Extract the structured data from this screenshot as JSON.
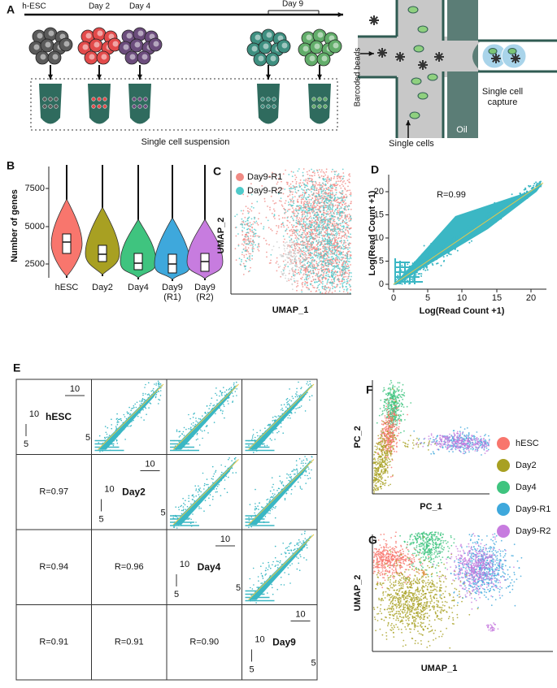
{
  "panel_a": {
    "letter": "A",
    "stages": [
      "h-ESC",
      "Day 2",
      "Day 4",
      "Day 9"
    ],
    "suspension": "Single cell suspension",
    "beads": "Barcoded beads",
    "capture": [
      "Single cell",
      "capture"
    ],
    "oil": "Oil",
    "cells": "Single cells"
  },
  "panel_b": {
    "letter": "B",
    "y_label": "Number of genes",
    "yticks": [
      "2500",
      "5000",
      "7500"
    ],
    "categories": [
      [
        "hESC"
      ],
      [
        "Day2"
      ],
      [
        "Day4"
      ],
      [
        "Day9",
        "(R1)"
      ],
      [
        "Day9",
        "(R2)"
      ]
    ]
  },
  "panel_c": {
    "letter": "C",
    "legend": [
      "Day9-R1",
      "Day9-R2"
    ],
    "colors": [
      "#f08a84",
      "#4fcaca"
    ],
    "x_label": "UMAP_1",
    "y_label": "UMAP_2"
  },
  "panel_d": {
    "letter": "D",
    "annotation": "R=0.99",
    "x_label": "Log(Read Count +1)",
    "y_label": "Log(Read Count +1)",
    "xticks": [
      "0",
      "5",
      "10",
      "15",
      "20"
    ],
    "yticks": [
      "0",
      "5",
      "10",
      "15",
      "20"
    ]
  },
  "panel_e": {
    "letter": "E",
    "samples": [
      "hESC",
      "Day2",
      "Day4",
      "Day9"
    ],
    "correlations": [
      [
        "R=0.97"
      ],
      [
        "R=0.94",
        "R=0.96"
      ],
      [
        "R=0.91",
        "R=0.91",
        "R=0.90"
      ]
    ],
    "tick_low": "5",
    "tick_high": "10"
  },
  "panel_f": {
    "letter": "F",
    "x_label": "PC_1",
    "y_label": "PC_2"
  },
  "legend": {
    "names": [
      "hESC",
      "Day2",
      "Day4",
      "Day9-R1",
      "Day9-R2"
    ],
    "colors": [
      "#f8766d",
      "#a8a022",
      "#3fc47f",
      "#3ea8dc",
      "#c77cdf"
    ]
  },
  "panel_g": {
    "letter": "G",
    "x_label": "UMAP_1",
    "y_label": "UMAP_2"
  }
}
